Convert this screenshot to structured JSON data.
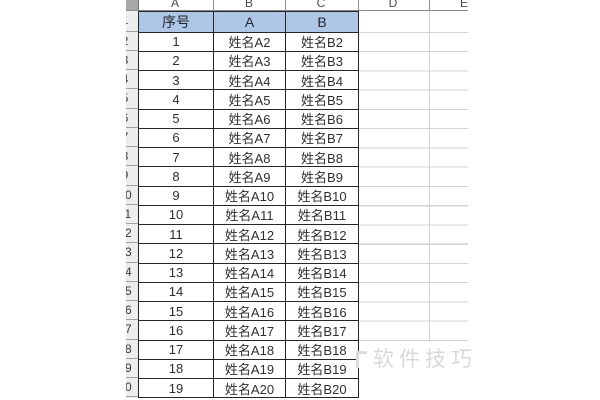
{
  "sheet": {
    "column_letters": [
      "A",
      "B",
      "C",
      "D",
      "E"
    ],
    "header_row": {
      "c1": "序号",
      "c2": "A",
      "c3": "B"
    },
    "rows": [
      {
        "seq": "1",
        "a": "姓名A2",
        "b": "姓名B2"
      },
      {
        "seq": "2",
        "a": "姓名A3",
        "b": "姓名B3"
      },
      {
        "seq": "3",
        "a": "姓名A4",
        "b": "姓名B4"
      },
      {
        "seq": "4",
        "a": "姓名A5",
        "b": "姓名B5"
      },
      {
        "seq": "5",
        "a": "姓名A6",
        "b": "姓名B6"
      },
      {
        "seq": "6",
        "a": "姓名A7",
        "b": "姓名B7"
      },
      {
        "seq": "7",
        "a": "姓名A8",
        "b": "姓名B8"
      },
      {
        "seq": "8",
        "a": "姓名A9",
        "b": "姓名B9"
      },
      {
        "seq": "9",
        "a": "姓名A10",
        "b": "姓名B10"
      },
      {
        "seq": "10",
        "a": "姓名A11",
        "b": "姓名B11"
      },
      {
        "seq": "11",
        "a": "姓名A12",
        "b": "姓名B12"
      },
      {
        "seq": "12",
        "a": "姓名A13",
        "b": "姓名B13"
      },
      {
        "seq": "13",
        "a": "姓名A14",
        "b": "姓名B14"
      },
      {
        "seq": "14",
        "a": "姓名A15",
        "b": "姓名B15"
      },
      {
        "seq": "15",
        "a": "姓名A16",
        "b": "姓名B16"
      },
      {
        "seq": "16",
        "a": "姓名A17",
        "b": "姓名B17"
      },
      {
        "seq": "17",
        "a": "姓名A18",
        "b": "姓名B18"
      },
      {
        "seq": "18",
        "a": "姓名A19",
        "b": "姓名B19"
      },
      {
        "seq": "19",
        "a": "姓名A20",
        "b": "姓名B20"
      }
    ],
    "row_header_numbers": [
      "1",
      "2",
      "3",
      "4",
      "5",
      "6",
      "7",
      "8",
      "9",
      "10",
      "11",
      "12",
      "13",
      "14",
      "15",
      "16",
      "17",
      "18",
      "19",
      "20"
    ]
  },
  "watermark": {
    "text": "软件技巧"
  },
  "colors": {
    "header_fill": "#aec7e6",
    "table_border": "#262626",
    "gridline": "#d2d2d2",
    "row_header_bg": "#ededed",
    "row_header_separator": "#a2a2a2",
    "watermark": "#d9d9d9"
  }
}
